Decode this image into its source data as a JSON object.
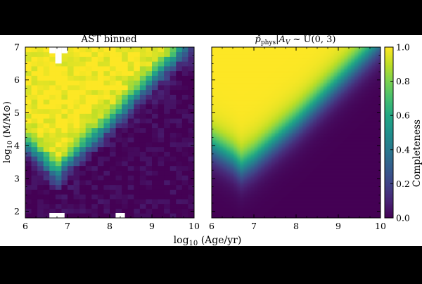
{
  "chart_data": [
    {
      "type": "heatmap",
      "title": "AST binned",
      "xlabel": "log₁₀ (Age/yr)",
      "ylabel": "log₁₀ (M/M⊙)",
      "xlim": [
        6,
        10
      ],
      "ylim": [
        1.8,
        7
      ],
      "xticks": [
        6,
        7,
        8,
        9,
        10
      ],
      "yticks": [
        2,
        3,
        4,
        5,
        6,
        7
      ],
      "value_range": [
        0,
        1
      ],
      "binned": true,
      "bins": {
        "x": 28,
        "y": 36
      },
      "model": {
        "description_of_cells": "completeness vs. age and mass",
        "transition_center_at": [
          [
            6,
            4.1
          ],
          [
            6.5,
            3.5
          ],
          [
            6.75,
            3.15
          ],
          [
            7,
            3.5
          ],
          [
            8,
            4.7
          ],
          [
            9,
            6.0
          ],
          [
            10,
            7.3
          ]
        ],
        "transition_width": 0.55
      },
      "missing_bins": [
        {
          "x": [
            6.57,
            6.71
          ],
          "y": [
            6.81,
            7.0
          ]
        },
        {
          "x": [
            6.86,
            7.0
          ],
          "y": [
            6.81,
            7.0
          ]
        },
        {
          "x": [
            6.71,
            6.86
          ],
          "y": [
            6.5,
            7.0
          ]
        },
        {
          "x": [
            6.57,
            6.93
          ],
          "y": [
            1.8,
            1.95
          ]
        },
        {
          "x": [
            8.14,
            8.36
          ],
          "y": [
            1.8,
            1.95
          ]
        }
      ]
    },
    {
      "type": "heatmap",
      "title": "p̂phys|AV ~ U(0, 3)",
      "xlabel": "log₁₀ (Age/yr)",
      "xlim": [
        6,
        10
      ],
      "ylim": [
        1.8,
        7
      ],
      "xticks": [
        6,
        7,
        8,
        9,
        10
      ],
      "yticks": [
        2,
        3,
        4,
        5,
        6,
        7
      ],
      "value_range": [
        0,
        1
      ],
      "binned": false,
      "model": {
        "transition_center_at": [
          [
            6,
            4.0
          ],
          [
            6.5,
            3.6
          ],
          [
            6.7,
            3.35
          ],
          [
            7,
            3.6
          ],
          [
            8,
            4.7
          ],
          [
            9,
            5.95
          ],
          [
            10,
            7.2
          ]
        ],
        "transition_width": 0.75
      }
    }
  ],
  "colorbar": {
    "label": "Completeness",
    "ticks": [
      "0.0",
      "0.2",
      "0.4",
      "0.6",
      "0.8",
      "1.0"
    ],
    "colormap": "viridis"
  },
  "shared_xlabel_text": "log",
  "shared_xlabel_sub": "10",
  "shared_xlabel_rest": " (Age/yr)",
  "ylabel_text": "log",
  "ylabel_sub": "10",
  "ylabel_rest": " (M/M⊙)",
  "left_title": "AST binned",
  "right_title_main": "p̂",
  "right_title_sub": "phys",
  "right_title_rest": "|A",
  "right_title_sub2": "V",
  "right_title_tail": " ~ U(0, 3)",
  "x_tick_labels": [
    "6",
    "7",
    "8",
    "9",
    "10"
  ],
  "y_tick_labels": [
    "2",
    "3",
    "4",
    "5",
    "6",
    "7"
  ]
}
